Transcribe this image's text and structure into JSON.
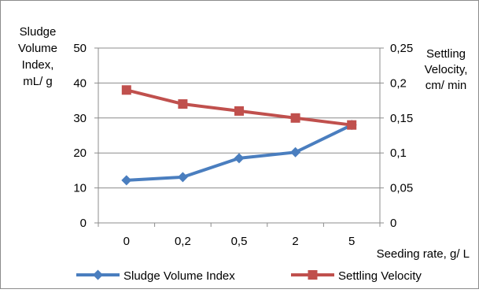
{
  "chart_data": {
    "type": "line",
    "categories": [
      "0",
      "0,2",
      "0,5",
      "2",
      "5"
    ],
    "xlabel": "Seeding rate,  g/ L",
    "ylabel_left": [
      "Sludge",
      "Volume",
      "Index,",
      "mL/ g"
    ],
    "ylabel_right": [
      "Settling",
      "Velocity,",
      "cm/ min"
    ],
    "y_left_ticks": [
      "0",
      "10",
      "20",
      "30",
      "40",
      "50"
    ],
    "y_right_ticks": [
      "0",
      "0,05",
      "0,1",
      "0,15",
      "0,2",
      "0,25"
    ],
    "ylim_left": [
      0,
      50
    ],
    "ylim_right": [
      0,
      0.25
    ],
    "gridlines": true,
    "legend_position": "bottom",
    "series": [
      {
        "name": "Sludge Volume Index",
        "axis": "left",
        "values": [
          12.2,
          13.1,
          18.5,
          20.2,
          28
        ],
        "color": "#4a7ebf",
        "marker": "diamond"
      },
      {
        "name": "Settling Velocity",
        "axis": "right",
        "values": [
          0.19,
          0.17,
          0.16,
          0.15,
          0.14
        ],
        "color": "#c0504d",
        "marker": "square"
      }
    ]
  }
}
